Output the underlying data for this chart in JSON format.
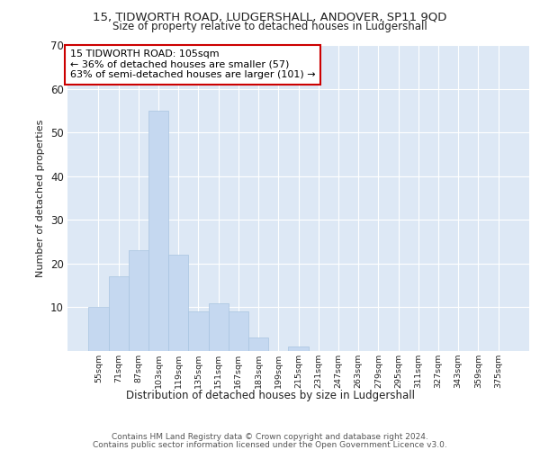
{
  "title1": "15, TIDWORTH ROAD, LUDGERSHALL, ANDOVER, SP11 9QD",
  "title2": "Size of property relative to detached houses in Ludgershall",
  "xlabel": "Distribution of detached houses by size in Ludgershall",
  "ylabel": "Number of detached properties",
  "categories": [
    "55sqm",
    "71sqm",
    "87sqm",
    "103sqm",
    "119sqm",
    "135sqm",
    "151sqm",
    "167sqm",
    "183sqm",
    "199sqm",
    "215sqm",
    "231sqm",
    "247sqm",
    "263sqm",
    "279sqm",
    "295sqm",
    "311sqm",
    "327sqm",
    "343sqm",
    "359sqm",
    "375sqm"
  ],
  "values": [
    10,
    17,
    23,
    55,
    22,
    9,
    11,
    9,
    3,
    0,
    1,
    0,
    0,
    0,
    0,
    0,
    0,
    0,
    0,
    0,
    0
  ],
  "bar_color": "#c5d8f0",
  "bar_edgecolor": "#a8c4e0",
  "annotation_line1": "15 TIDWORTH ROAD: 105sqm",
  "annotation_line2": "← 36% of detached houses are smaller (57)",
  "annotation_line3": "63% of semi-detached houses are larger (101) →",
  "annotation_box_facecolor": "#ffffff",
  "annotation_box_edgecolor": "#cc0000",
  "ylim": [
    0,
    70
  ],
  "yticks": [
    0,
    10,
    20,
    30,
    40,
    50,
    60,
    70
  ],
  "plot_bg": "#dde8f5",
  "fig_bg": "#ffffff",
  "grid_color": "#ffffff",
  "footer1": "Contains HM Land Registry data © Crown copyright and database right 2024.",
  "footer2": "Contains public sector information licensed under the Open Government Licence v3.0."
}
